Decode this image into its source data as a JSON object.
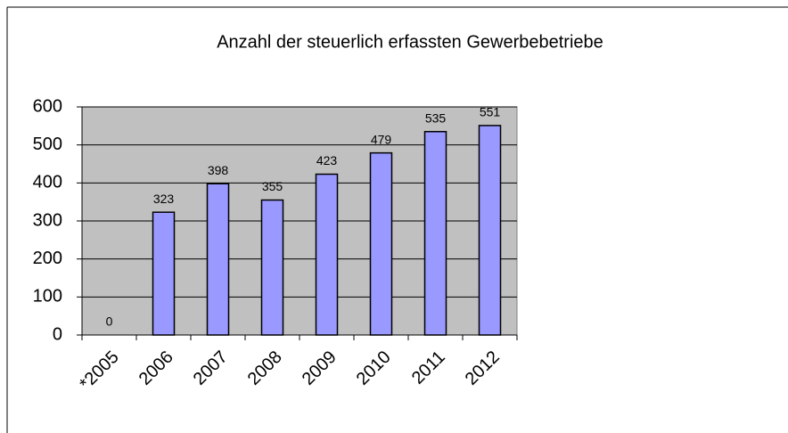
{
  "chart_data": {
    "type": "bar",
    "title": "Anzahl der steuerlich erfassten Gewerbebetriebe",
    "categories": [
      "*2005",
      "2006",
      "2007",
      "2008",
      "2009",
      "2010",
      "2011",
      "2012"
    ],
    "values": [
      0,
      323,
      398,
      355,
      423,
      479,
      535,
      551
    ],
    "color": "#9999ff",
    "ylim": [
      0,
      600
    ],
    "yticks": [
      0,
      100,
      200,
      300,
      400,
      500,
      600
    ],
    "grid": true
  }
}
